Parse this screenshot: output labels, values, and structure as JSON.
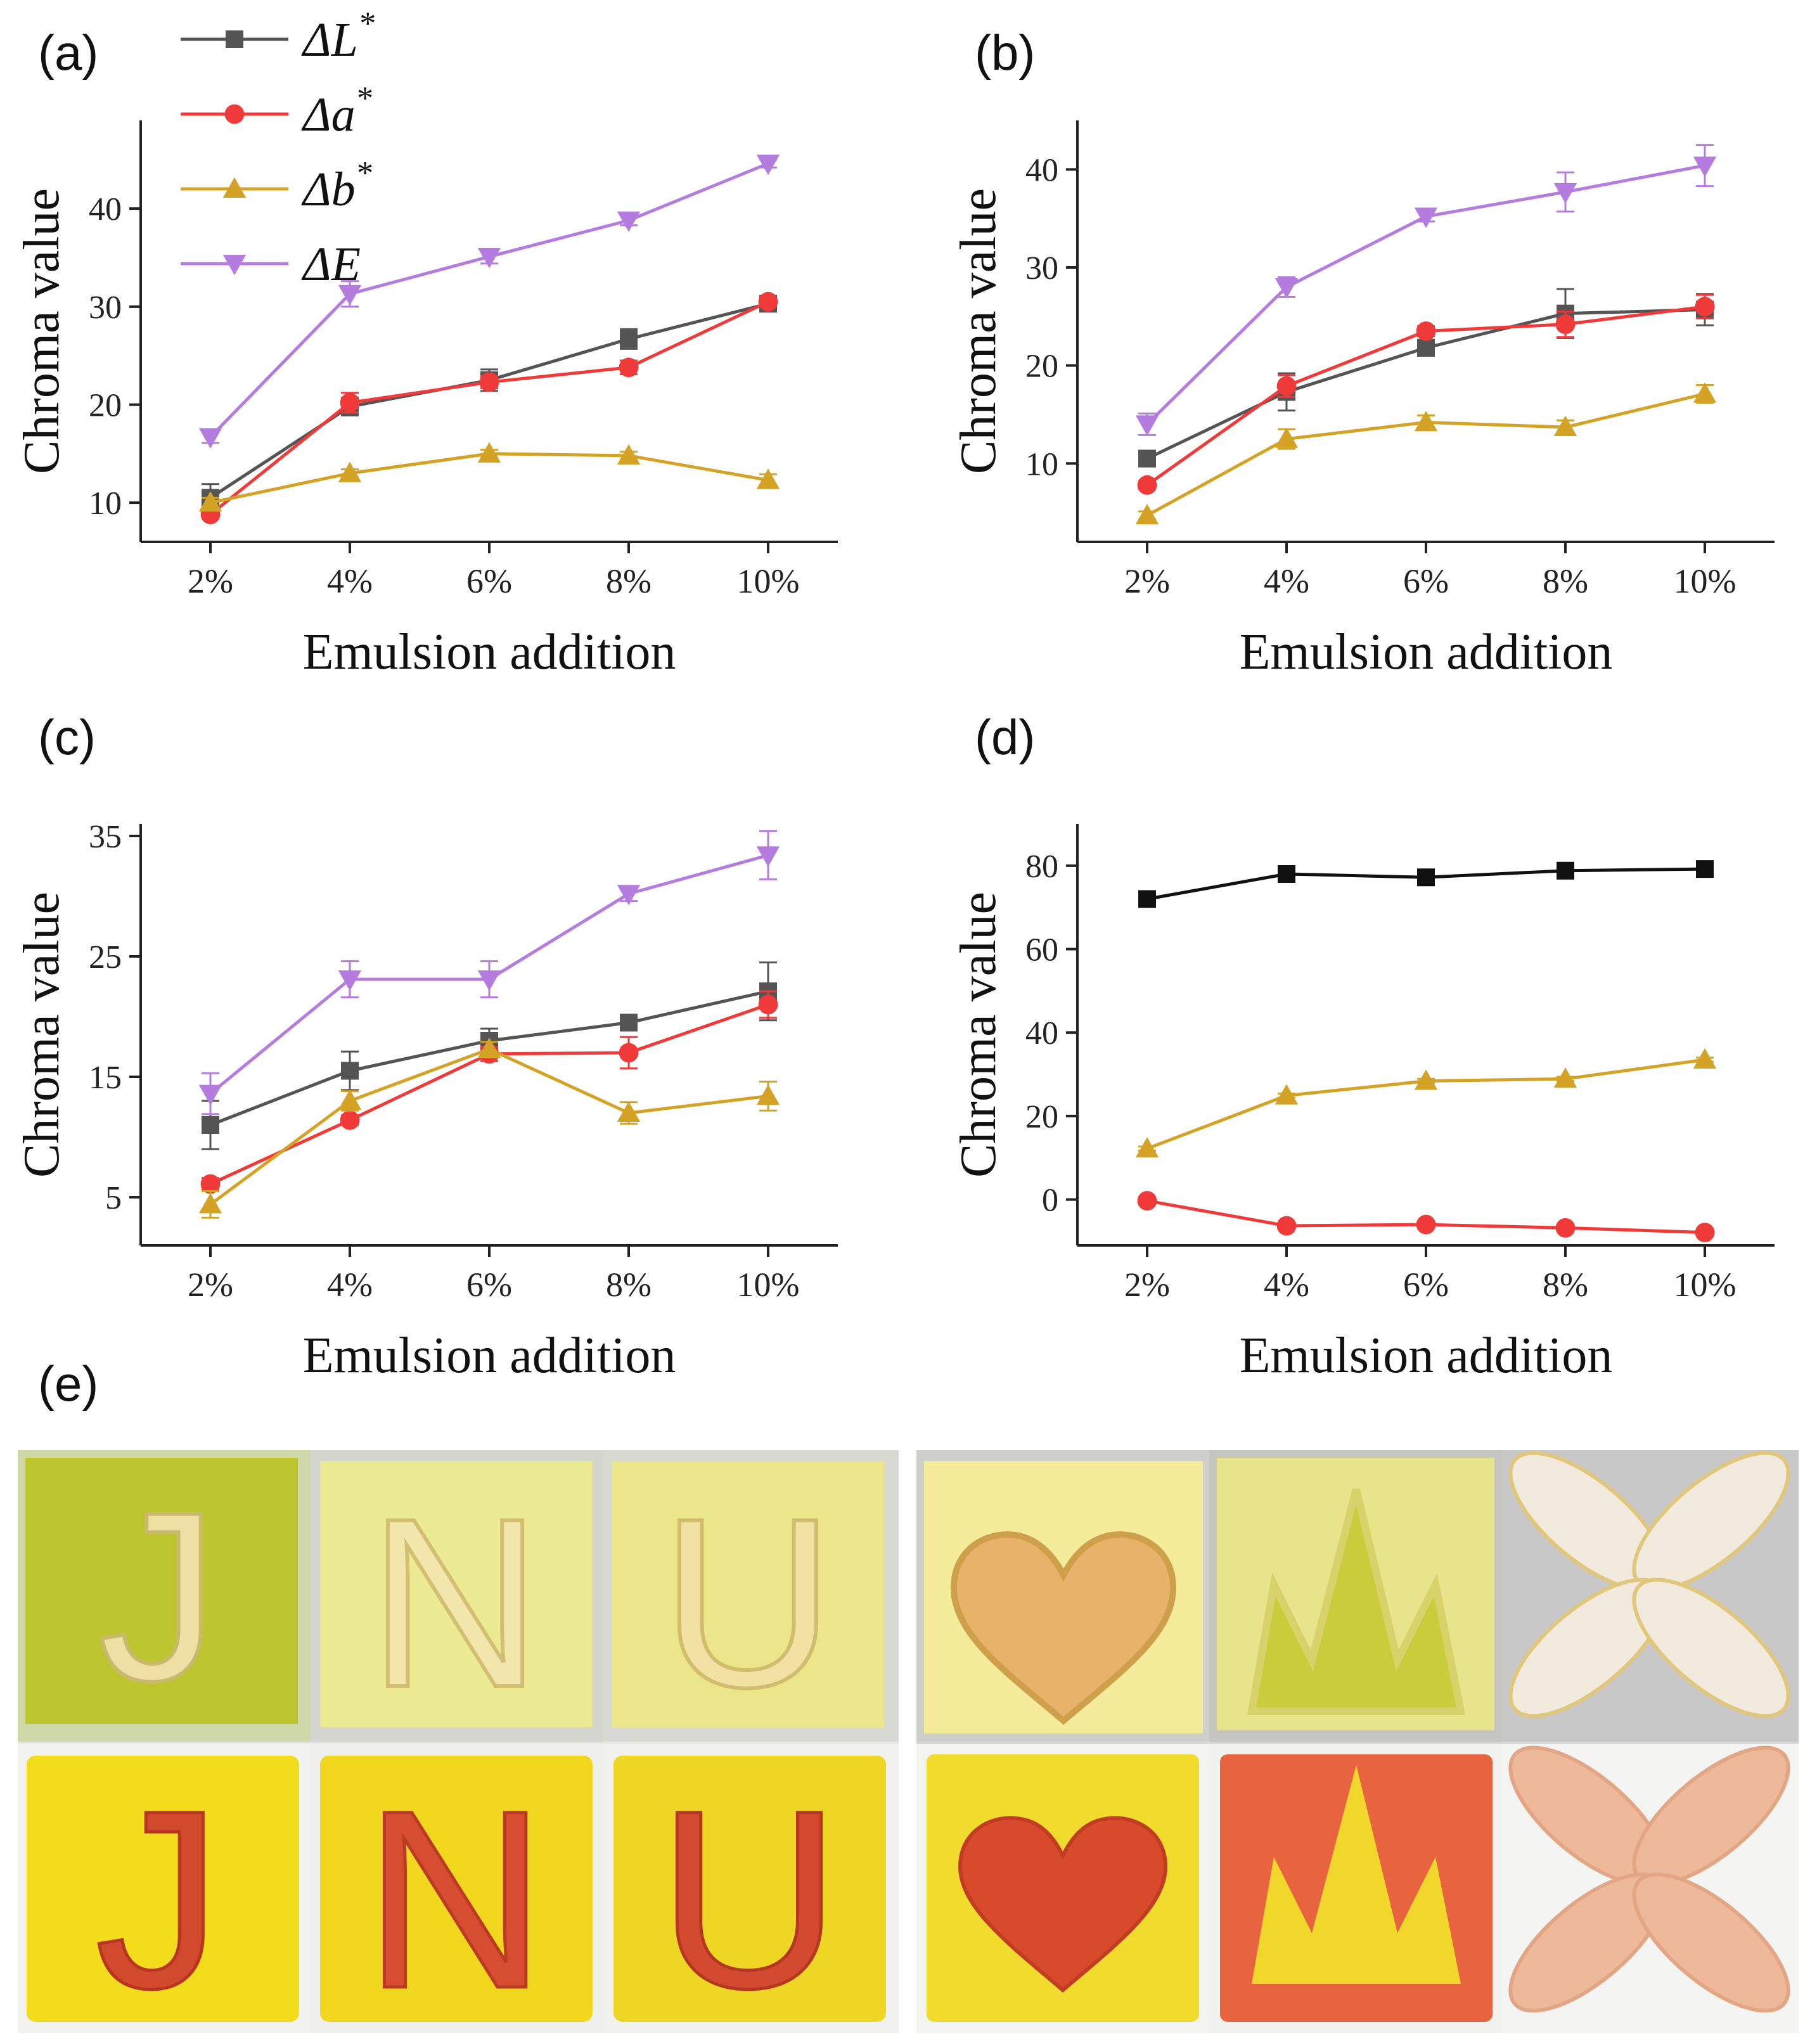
{
  "colors": {
    "dL": "#545454",
    "da": "#f03a3a",
    "db": "#d4a326",
    "dE": "#b57ce0",
    "dL_panel_d": "#111111"
  },
  "legend": {
    "entries": [
      {
        "key": "dL",
        "label": "ΔL",
        "sup": "*",
        "marker": "square"
      },
      {
        "key": "da",
        "label": "Δa",
        "sup": "*",
        "marker": "circle"
      },
      {
        "key": "db",
        "label": "Δb",
        "sup": "*",
        "marker": "triangle-up"
      },
      {
        "key": "dE",
        "label": "ΔE",
        "sup": "",
        "marker": "triangle-down"
      }
    ]
  },
  "chart_data": [
    {
      "panel": "(a)",
      "type": "line",
      "xlabel": "Emulsion addition",
      "ylabel": "Chroma value",
      "categories": [
        "2%",
        "4%",
        "6%",
        "8%",
        "10%"
      ],
      "ylim": [
        6,
        49
      ],
      "yticks": [
        10,
        20,
        30,
        40
      ],
      "series": [
        {
          "key": "dL",
          "values": [
            10.5,
            19.8,
            22.5,
            26.7,
            30.3
          ],
          "err": [
            1.4,
            0.9,
            1.1,
            1.0,
            0.5
          ]
        },
        {
          "key": "da",
          "values": [
            8.8,
            20.2,
            22.3,
            23.8,
            30.5
          ],
          "err": [
            0.4,
            1.0,
            0.6,
            0.7,
            0.4
          ]
        },
        {
          "key": "db",
          "values": [
            10.0,
            13.0,
            15.0,
            14.8,
            12.3
          ],
          "err": [
            0.5,
            0.4,
            0.4,
            0.4,
            0.6
          ]
        },
        {
          "key": "dE",
          "values": [
            16.7,
            31.3,
            35.1,
            38.8,
            44.6
          ],
          "err": [
            0.6,
            1.3,
            0.7,
            0.5,
            0.4
          ]
        }
      ]
    },
    {
      "panel": "(b)",
      "type": "line",
      "xlabel": "Emulsion addition",
      "ylabel": "Chroma value",
      "categories": [
        "2%",
        "4%",
        "6%",
        "8%",
        "10%"
      ],
      "ylim": [
        2,
        45
      ],
      "yticks": [
        10,
        20,
        30,
        40
      ],
      "series": [
        {
          "key": "dL",
          "values": [
            10.5,
            17.3,
            21.8,
            25.3,
            25.7
          ],
          "err": [
            0.8,
            1.9,
            0.8,
            2.5,
            1.6
          ]
        },
        {
          "key": "da",
          "values": [
            7.8,
            17.9,
            23.5,
            24.2,
            26.0
          ],
          "err": [
            0.4,
            1.1,
            0.5,
            1.3,
            1.2
          ]
        },
        {
          "key": "db",
          "values": [
            4.7,
            12.5,
            14.2,
            13.7,
            17.1
          ],
          "err": [
            0.4,
            1.0,
            0.7,
            0.7,
            0.9
          ]
        },
        {
          "key": "dE",
          "values": [
            14.0,
            28.0,
            35.2,
            37.7,
            40.4
          ],
          "err": [
            1.1,
            1.0,
            0.5,
            2.0,
            2.1
          ]
        }
      ]
    },
    {
      "panel": "(c)",
      "type": "line",
      "xlabel": "Emulsion addition",
      "ylabel": "Chroma value",
      "categories": [
        "2%",
        "4%",
        "6%",
        "8%",
        "10%"
      ],
      "ylim": [
        1,
        36
      ],
      "yticks": [
        5,
        15,
        25,
        35
      ],
      "series": [
        {
          "key": "dL",
          "values": [
            11.0,
            15.5,
            18.0,
            19.5,
            22.1
          ],
          "err": [
            2.0,
            1.6,
            1.0,
            0.5,
            2.4
          ]
        },
        {
          "key": "da",
          "values": [
            6.1,
            11.4,
            16.9,
            17.0,
            21.0
          ],
          "err": [
            0.5,
            0.4,
            0.6,
            1.3,
            1.1
          ]
        },
        {
          "key": "db",
          "values": [
            4.4,
            13.0,
            17.3,
            12.0,
            13.4
          ],
          "err": [
            1.1,
            0.8,
            0.6,
            0.9,
            1.2
          ]
        },
        {
          "key": "dE",
          "values": [
            13.6,
            23.1,
            23.1,
            30.2,
            33.4
          ],
          "err": [
            1.7,
            1.5,
            1.5,
            0.6,
            2.0
          ]
        }
      ]
    },
    {
      "panel": "(d)",
      "type": "line",
      "xlabel": "Emulsion addition",
      "ylabel": "Chroma value",
      "categories": [
        "2%",
        "4%",
        "6%",
        "8%",
        "10%"
      ],
      "ylim": [
        -11,
        90
      ],
      "yticks": [
        0,
        20,
        40,
        60,
        80
      ],
      "series": [
        {
          "key": "dL_panel_d",
          "marker": "square",
          "values": [
            72.0,
            78.0,
            77.2,
            78.8,
            79.2
          ],
          "err": [
            0.5,
            0.5,
            0.5,
            0.5,
            0.5
          ]
        },
        {
          "key": "db",
          "values": [
            12.2,
            24.9,
            28.4,
            28.9,
            33.5
          ],
          "err": [
            0.5,
            0.5,
            0.5,
            0.5,
            0.5
          ]
        },
        {
          "key": "da",
          "values": [
            -0.3,
            -6.3,
            -6.0,
            -6.8,
            -7.9
          ],
          "err": [
            0.4,
            0.4,
            0.4,
            0.4,
            0.4
          ]
        }
      ]
    }
  ],
  "photos": {
    "label": "(e)",
    "left_letters": [
      "J",
      "N",
      "U"
    ],
    "right_shapes": [
      "heart",
      "crown",
      "petals"
    ]
  }
}
